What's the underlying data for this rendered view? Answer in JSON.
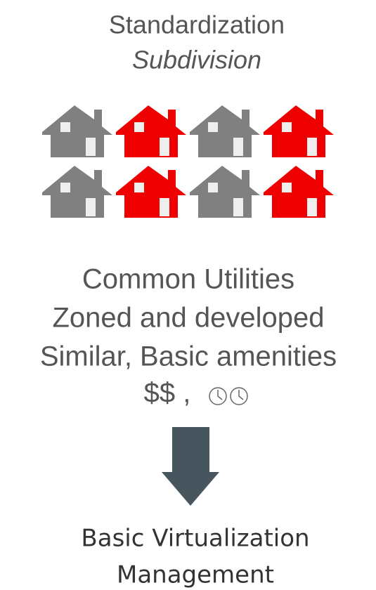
{
  "header": {
    "title": "Standardization",
    "subtitle": "Subdivision"
  },
  "features": [
    "Common Utilities",
    "Zoned and developed",
    "Similar,  Basic amenities",
    "$$ ,"
  ],
  "result": [
    "Basic Virtualization",
    "Management"
  ]
}
